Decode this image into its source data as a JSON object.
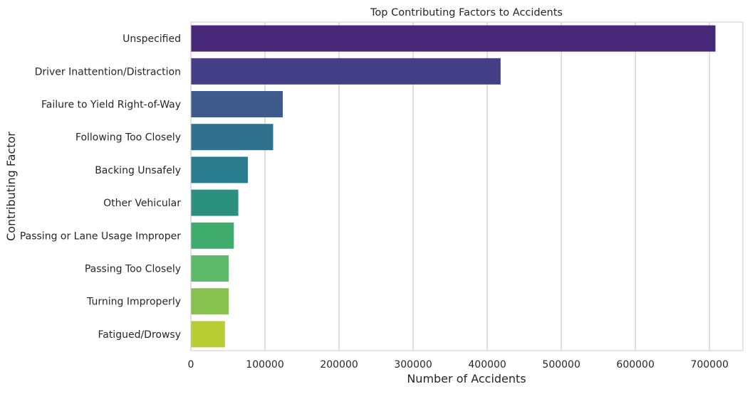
{
  "chart_data": {
    "type": "bar",
    "orientation": "horizontal",
    "title": "Top Contributing Factors to Accidents",
    "xlabel": "Number of Accidents",
    "ylabel": "Contributing Factor",
    "xlim": [
      0,
      745000
    ],
    "xticks": [
      0,
      100000,
      200000,
      300000,
      400000,
      500000,
      600000,
      700000
    ],
    "xtick_labels": [
      "0",
      "100000",
      "200000",
      "300000",
      "400000",
      "500000",
      "600000",
      "700000"
    ],
    "grid": "vertical",
    "categories": [
      "Unspecified",
      "Driver Inattention/Distraction",
      "Failure to Yield Right-of-Way",
      "Following Too Closely",
      "Backing Unsafely",
      "Other Vehicular",
      "Passing or Lane Usage Improper",
      "Passing Too Closely",
      "Turning Improperly",
      "Fatigued/Drowsy"
    ],
    "values": [
      708000,
      418000,
      124000,
      111000,
      77000,
      64000,
      58000,
      51000,
      51000,
      46000
    ],
    "colors": [
      "#482878",
      "#433e85",
      "#3e5a8c",
      "#30718e",
      "#297b8e",
      "#2b9080",
      "#3fac6e",
      "#5dba6a",
      "#88c24e",
      "#b7cd31"
    ]
  }
}
